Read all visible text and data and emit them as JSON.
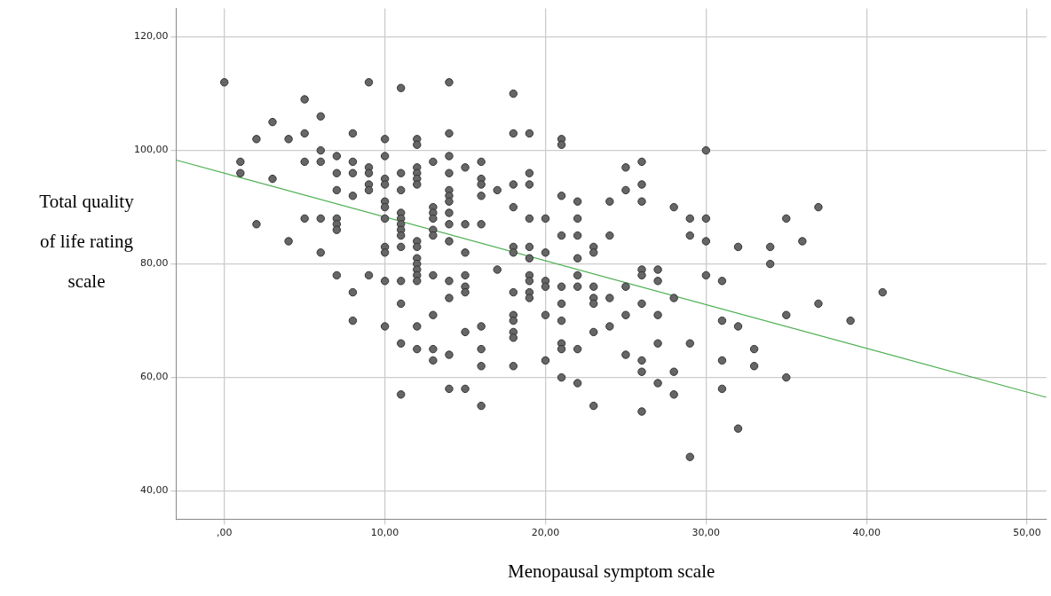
{
  "chart_data": {
    "type": "scatter",
    "xlabel": "Menopausal symptom scale",
    "ylabel": "Total quality of life rating scale",
    "xlim": [
      -3,
      51.2
    ],
    "ylim": [
      35,
      125
    ],
    "xticks": [
      {
        "value": 0,
        "label": ",00"
      },
      {
        "value": 10,
        "label": "10,00"
      },
      {
        "value": 20,
        "label": "20,00"
      },
      {
        "value": 30,
        "label": "30,00"
      },
      {
        "value": 40,
        "label": "40,00"
      },
      {
        "value": 50,
        "label": "50,00"
      }
    ],
    "yticks": [
      {
        "value": 40,
        "label": "40,00"
      },
      {
        "value": 60,
        "label": "60,00"
      },
      {
        "value": 80,
        "label": "80,00"
      },
      {
        "value": 100,
        "label": "100,00"
      },
      {
        "value": 120,
        "label": "120,00"
      }
    ],
    "grid": true,
    "marker": "circle",
    "series": [
      {
        "color": "#666666",
        "x": [
          0,
          1,
          1,
          2,
          2,
          3,
          3,
          4,
          4,
          5,
          5,
          5,
          5,
          6,
          6,
          6,
          6,
          6,
          7,
          7,
          7,
          7,
          7,
          7,
          7,
          8,
          8,
          8,
          8,
          8,
          8,
          9,
          9,
          9,
          9,
          9,
          9,
          10,
          10,
          10,
          10,
          10,
          10,
          10,
          10,
          10,
          10,
          10,
          11,
          11,
          11,
          11,
          11,
          11,
          11,
          11,
          11,
          11,
          11,
          11,
          11,
          12,
          12,
          12,
          12,
          12,
          12,
          12,
          12,
          12,
          12,
          12,
          12,
          12,
          12,
          12,
          13,
          13,
          13,
          13,
          13,
          13,
          13,
          13,
          13,
          13,
          14,
          14,
          14,
          14,
          14,
          14,
          14,
          14,
          14,
          14,
          14,
          14,
          14,
          14,
          15,
          15,
          15,
          15,
          15,
          15,
          15,
          15,
          16,
          16,
          16,
          16,
          16,
          16,
          16,
          16,
          16,
          17,
          17,
          18,
          18,
          18,
          18,
          18,
          18,
          18,
          18,
          18,
          18,
          18,
          18,
          19,
          19,
          19,
          19,
          19,
          19,
          19,
          19,
          19,
          19,
          20,
          20,
          20,
          20,
          20,
          20,
          21,
          21,
          21,
          21,
          21,
          21,
          21,
          21,
          21,
          21,
          22,
          22,
          22,
          22,
          22,
          22,
          22,
          22,
          23,
          23,
          23,
          23,
          23,
          23,
          23,
          24,
          24,
          24,
          24,
          25,
          25,
          25,
          25,
          25,
          26,
          26,
          26,
          26,
          26,
          26,
          26,
          26,
          26,
          27,
          27,
          27,
          27,
          27,
          28,
          28,
          28,
          28,
          29,
          29,
          29,
          29,
          30,
          30,
          30,
          30,
          31,
          31,
          31,
          31,
          32,
          32,
          32,
          33,
          33,
          34,
          34,
          35,
          35,
          35,
          36,
          37,
          37,
          39,
          41
        ],
        "values": [
          112,
          98,
          96,
          102,
          87,
          105,
          95,
          102,
          84,
          109,
          103,
          98,
          88,
          106,
          100,
          98,
          88,
          82,
          99,
          96,
          93,
          88,
          87,
          86,
          78,
          103,
          98,
          96,
          92,
          75,
          70,
          112,
          97,
          96,
          94,
          93,
          78,
          102,
          99,
          95,
          94,
          91,
          90,
          88,
          83,
          82,
          77,
          69,
          111,
          96,
          93,
          89,
          88,
          87,
          86,
          85,
          83,
          77,
          73,
          66,
          57,
          102,
          101,
          97,
          96,
          95,
          94,
          84,
          83,
          81,
          80,
          79,
          78,
          77,
          69,
          65,
          98,
          90,
          89,
          88,
          86,
          85,
          78,
          71,
          65,
          63,
          112,
          103,
          99,
          96,
          93,
          92,
          91,
          89,
          87,
          84,
          77,
          74,
          64,
          58,
          97,
          87,
          82,
          78,
          76,
          75,
          68,
          58,
          98,
          95,
          94,
          92,
          87,
          69,
          65,
          62,
          55,
          93,
          79,
          110,
          103,
          94,
          90,
          83,
          82,
          75,
          71,
          70,
          68,
          67,
          62,
          103,
          96,
          94,
          88,
          83,
          81,
          78,
          77,
          75,
          74,
          88,
          82,
          77,
          76,
          71,
          63,
          102,
          101,
          92,
          85,
          76,
          73,
          70,
          66,
          65,
          60,
          91,
          88,
          85,
          81,
          78,
          76,
          65,
          59,
          83,
          82,
          76,
          74,
          73,
          68,
          55,
          91,
          85,
          74,
          69,
          97,
          93,
          76,
          71,
          64,
          98,
          94,
          91,
          79,
          78,
          73,
          63,
          61,
          54,
          79,
          77,
          71,
          66,
          59,
          90,
          74,
          61,
          57,
          88,
          85,
          66,
          46,
          100,
          88,
          84,
          78,
          77,
          70,
          63,
          58,
          83,
          69,
          51,
          65,
          62,
          83,
          80,
          88,
          71,
          60,
          84,
          90,
          73,
          70,
          75
        ]
      },
      {
        "type": "line",
        "color": "#4caf50",
        "marker": "none",
        "x": [
          -3,
          51.2
        ],
        "values": [
          98.3,
          56.5
        ]
      }
    ]
  }
}
